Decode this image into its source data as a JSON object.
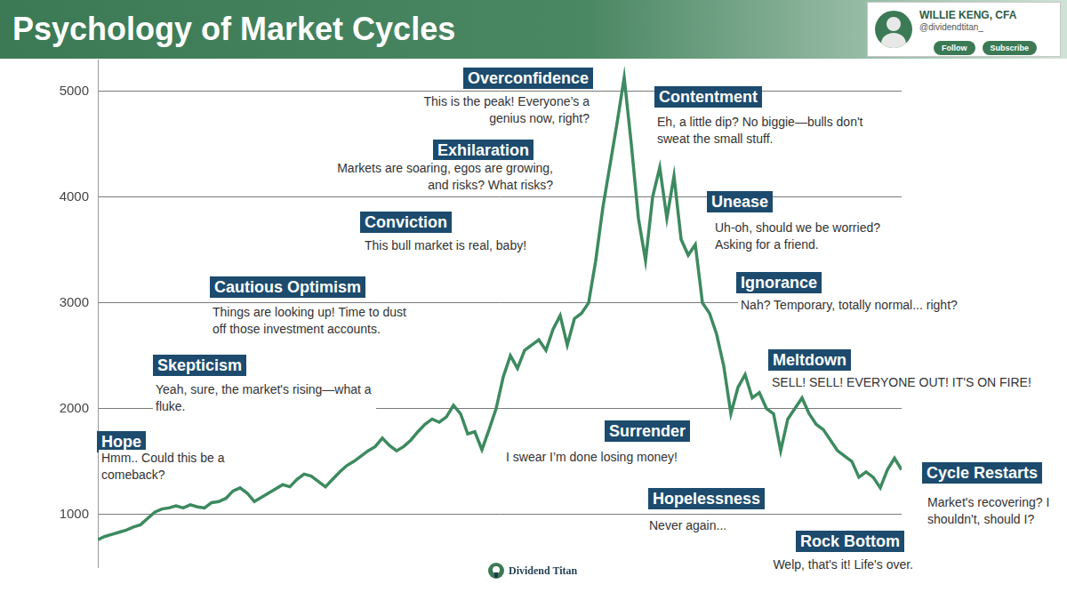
{
  "chart_data": {
    "type": "line",
    "title": "Psychology of Market Cycles",
    "categories": [
      null,
      null,
      null,
      null,
      null,
      null,
      null,
      null,
      null,
      null,
      null,
      null,
      null,
      null,
      null,
      null,
      null,
      null,
      null,
      null,
      null,
      null,
      null,
      null,
      null,
      null,
      null,
      null,
      null,
      null,
      null,
      null,
      null,
      null,
      null,
      null,
      null,
      null,
      null,
      null,
      null,
      null,
      null,
      null,
      null,
      null,
      null,
      null,
      null,
      null,
      null,
      null,
      null,
      null,
      null,
      null,
      null,
      null,
      null,
      null,
      null,
      null,
      null,
      null,
      null,
      null,
      null,
      null,
      null,
      null,
      null,
      null,
      null,
      null,
      null,
      null,
      null,
      null,
      null,
      null,
      null,
      null,
      null,
      null,
      null,
      null,
      null,
      null,
      null,
      null,
      null,
      null,
      null,
      null,
      null,
      null,
      null,
      null,
      null,
      null,
      null,
      null,
      null,
      null,
      null,
      null,
      null,
      null,
      null,
      null,
      null,
      null,
      null,
      null
    ],
    "values": [
      760,
      790,
      810,
      830,
      850,
      880,
      900,
      960,
      1020,
      1050,
      1060,
      1080,
      1060,
      1090,
      1070,
      1060,
      1110,
      1120,
      1150,
      1220,
      1250,
      1200,
      1120,
      1160,
      1200,
      1240,
      1280,
      1260,
      1330,
      1380,
      1360,
      1310,
      1260,
      1330,
      1400,
      1460,
      1500,
      1550,
      1600,
      1640,
      1720,
      1650,
      1600,
      1640,
      1700,
      1780,
      1850,
      1900,
      1870,
      1920,
      2030,
      1950,
      1760,
      1780,
      1610,
      1800,
      2000,
      2300,
      2500,
      2380,
      2550,
      2600,
      2650,
      2550,
      2750,
      2880,
      2600,
      2850,
      2900,
      3000,
      3400,
      3900,
      4300,
      4700,
      5130,
      4500,
      3800,
      3400,
      4000,
      4280,
      3800,
      4200,
      3600,
      3450,
      3550,
      3000,
      2900,
      2700,
      2400,
      1950,
      2200,
      2320,
      2100,
      2150,
      2000,
      1950,
      1600,
      1900,
      2000,
      2100,
      1950,
      1850,
      1800,
      1700,
      1600,
      1550,
      1500,
      1350,
      1400,
      1350,
      1250,
      1420,
      1530,
      1420
    ],
    "color": "#3d8a5f",
    "ylim": [
      500,
      5300
    ],
    "yticks": [
      1000,
      2000,
      3000,
      4000,
      5000
    ],
    "grid": true,
    "tick_labels": "y",
    "annotations": [
      {
        "label": "Hope",
        "text": "Hmm.. Could this be a comeback?"
      },
      {
        "label": "Skepticism",
        "text": "Yeah, sure, the market's rising—what a fluke."
      },
      {
        "label": "Cautious Optimism",
        "text": "Things are looking up! Time to dust off those investment accounts."
      },
      {
        "label": "Conviction",
        "text": "This bull market is real, baby!"
      },
      {
        "label": "Exhilaration",
        "text": "Markets are soaring, egos are growing, and risks? What risks?"
      },
      {
        "label": "Overconfidence",
        "text": "This is the peak! Everyone’s a genius now, right?"
      },
      {
        "label": "Contentment",
        "text": "Eh, a little dip? No biggie—bulls don't sweat the small stuff."
      },
      {
        "label": "Unease",
        "text": "Uh-oh, should we be worried? Asking for a friend."
      },
      {
        "label": "Ignorance",
        "text": "Nah? Temporary, totally normal... right?"
      },
      {
        "label": "Meltdown",
        "text": "SELL! SELL! EVERYONE OUT! IT'S ON FIRE!"
      },
      {
        "label": "Surrender",
        "text": "I swear I’m done losing money!"
      },
      {
        "label": "Hopelessness",
        "text": "Never again..."
      },
      {
        "label": "Rock Bottom",
        "text": "Welp, that's it! Life's over."
      },
      {
        "label": "Cycle Restarts",
        "text": "Market's recovering? I shouldn't, should I?"
      }
    ]
  },
  "author": {
    "name": "WILLIE KENG, CFA",
    "handle": "@dividendtitan_",
    "buttons": [
      "Follow",
      "Subscribe"
    ]
  },
  "brand": "Dividend Titan"
}
